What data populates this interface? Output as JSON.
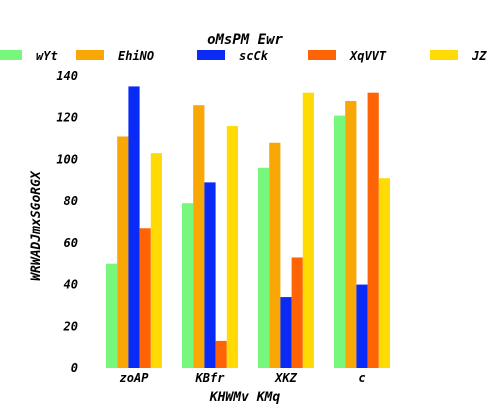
{
  "chart_data": {
    "type": "bar",
    "title": "oMsPM Ewr",
    "xlabel": "KHWMv KMq",
    "ylabel": "WRWADJmxSGoRGX",
    "categories": [
      "zoAP",
      "KBfr",
      "XKZ",
      "c"
    ],
    "ylim": [
      0,
      140
    ],
    "yticks": [
      0,
      20,
      40,
      60,
      80,
      100,
      120,
      140
    ],
    "grid": false,
    "legend_position": "top",
    "series": [
      {
        "name": "wYt",
        "color": "#77f77b",
        "values": [
          50,
          79,
          96,
          121
        ]
      },
      {
        "name": "EhiNO",
        "color": "#f9a705",
        "values": [
          111,
          126,
          108,
          128
        ]
      },
      {
        "name": "scCk",
        "color": "#0a2bf5",
        "values": [
          135,
          89,
          34,
          40
        ]
      },
      {
        "name": "XqVVT",
        "color": "#fe6405",
        "values": [
          67,
          13,
          53,
          132
        ]
      },
      {
        "name": "JZ",
        "color": "#ffda05",
        "values": [
          103,
          116,
          132,
          91
        ]
      }
    ]
  }
}
